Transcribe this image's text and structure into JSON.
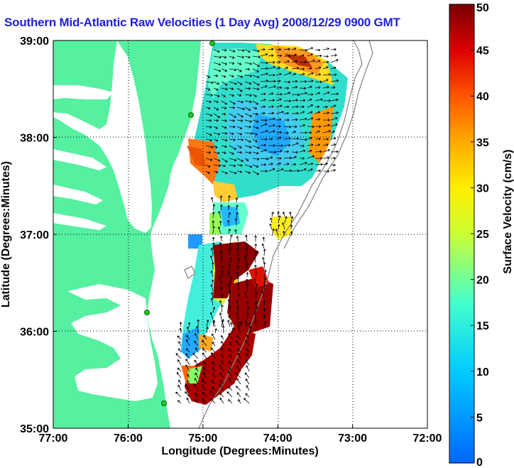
{
  "title": "Southern Mid-Atlantic Raw Velocities (1 Day Avg) 2008/12/29 0900 GMT",
  "xaxis": {
    "label": "Longitude (Degrees:Minutes)",
    "ticks": [
      "77:00",
      "76:00",
      "75:00",
      "74:00",
      "73:00",
      "72:00"
    ],
    "range": [
      -77,
      -72
    ]
  },
  "yaxis": {
    "label": "Latitude (Degrees:Minutes)",
    "ticks": [
      "35:00",
      "36:00",
      "37:00",
      "38:00",
      "39:00"
    ],
    "range": [
      35,
      39
    ]
  },
  "colorbar": {
    "label": "Surface Velocity (cm/s)",
    "ticks": [
      "0",
      "5",
      "10",
      "15",
      "20",
      "25",
      "30",
      "35",
      "40",
      "45",
      "50"
    ],
    "range": [
      0,
      50
    ]
  },
  "colors": {
    "land": "#55f0a0",
    "water": "#ffffff",
    "title": "#1f1fd6"
  }
}
